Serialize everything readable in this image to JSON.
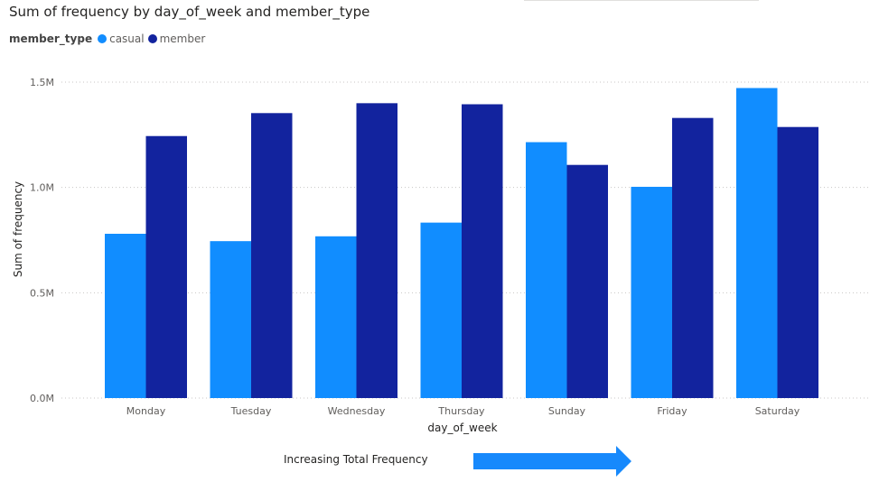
{
  "chart_data": {
    "type": "bar",
    "title": "Sum of frequency by day_of_week and member_type",
    "legend_title": "member_type",
    "legend_position": "top-left",
    "xlabel": "day_of_week",
    "ylabel": "Sum of frequency",
    "categories": [
      "Monday",
      "Tuesday",
      "Wednesday",
      "Thursday",
      "Sunday",
      "Friday",
      "Saturday"
    ],
    "series": [
      {
        "name": "casual",
        "color": "#118dff",
        "values": [
          780000,
          745000,
          768000,
          833000,
          1215000,
          1003000,
          1472000
        ]
      },
      {
        "name": "member",
        "color": "#12239e",
        "values": [
          1244000,
          1353000,
          1400000,
          1395000,
          1107000,
          1330000,
          1287000
        ]
      }
    ],
    "ylim": [
      0,
      1500000
    ],
    "yticks": [
      {
        "value": 0,
        "label": "0.0M"
      },
      {
        "value": 500000,
        "label": "0.5M"
      },
      {
        "value": 1000000,
        "label": "1.0M"
      },
      {
        "value": 1500000,
        "label": "1.5M"
      }
    ],
    "grid": true,
    "annotation": {
      "text": "Increasing Total Frequency",
      "arrow_color": "#1789fc",
      "arrow_direction": "right"
    }
  }
}
